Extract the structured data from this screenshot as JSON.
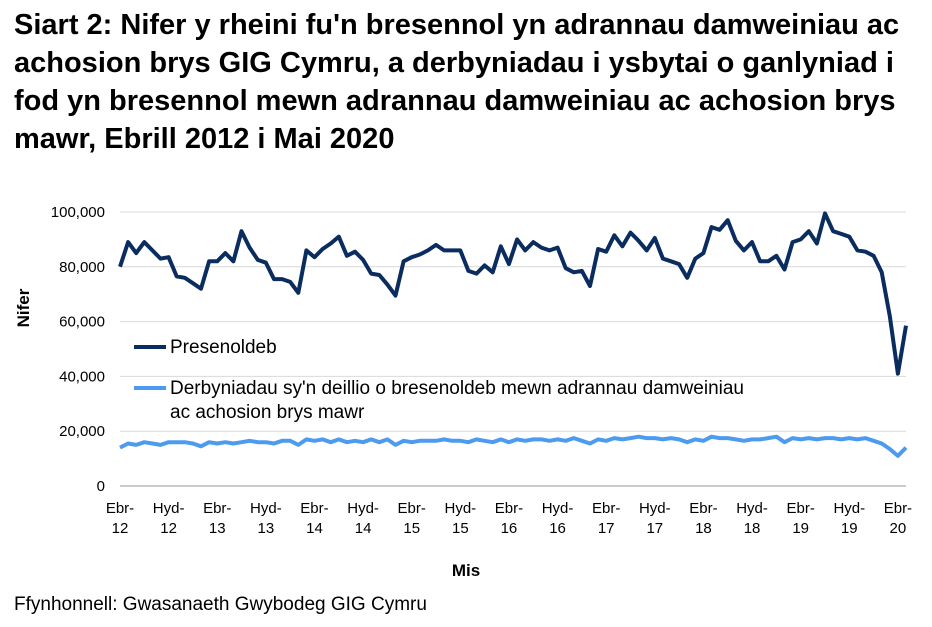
{
  "title": "Siart 2: Nifer y rheini fu'n bresennol yn adrannau damweiniau ac achosion brys GIG Cymru, a derbyniadau i ysbytai o ganlyniad i fod yn bresennol mewn adrannau damweiniau ac achosion brys mawr, Ebrill 2012 i Mai 2020",
  "source": "Ffynhonnell: Gwasanaeth Gwybodeg GIG Cymru",
  "chart_data": {
    "type": "line",
    "xlabel": "Mis",
    "ylabel": "Nifer",
    "ylim": [
      0,
      100000
    ],
    "yticks": [
      "0",
      "20,000",
      "40,000",
      "60,000",
      "80,000",
      "100,000"
    ],
    "yticks_values": [
      0,
      20000,
      40000,
      60000,
      80000,
      100000
    ],
    "grid": "horizontal",
    "legend_position": "middle-left",
    "xtick_labels": [
      {
        "index": 0,
        "line1": "Ebr-",
        "line2": "12"
      },
      {
        "index": 6,
        "line1": "Hyd-",
        "line2": "12"
      },
      {
        "index": 12,
        "line1": "Ebr-",
        "line2": "13"
      },
      {
        "index": 18,
        "line1": "Hyd-",
        "line2": "13"
      },
      {
        "index": 24,
        "line1": "Ebr-",
        "line2": "14"
      },
      {
        "index": 30,
        "line1": "Hyd-",
        "line2": "14"
      },
      {
        "index": 36,
        "line1": "Ebr-",
        "line2": "15"
      },
      {
        "index": 42,
        "line1": "Hyd-",
        "line2": "15"
      },
      {
        "index": 48,
        "line1": "Ebr-",
        "line2": "16"
      },
      {
        "index": 54,
        "line1": "Hyd-",
        "line2": "16"
      },
      {
        "index": 60,
        "line1": "Ebr-",
        "line2": "17"
      },
      {
        "index": 66,
        "line1": "Hyd-",
        "line2": "17"
      },
      {
        "index": 72,
        "line1": "Ebr-",
        "line2": "18"
      },
      {
        "index": 78,
        "line1": "Hyd-",
        "line2": "18"
      },
      {
        "index": 84,
        "line1": "Ebr-",
        "line2": "19"
      },
      {
        "index": 90,
        "line1": "Hyd-",
        "line2": "19"
      },
      {
        "index": 96,
        "line1": "Ebr-",
        "line2": "20"
      }
    ],
    "series": [
      {
        "name": "Presenoldeb",
        "color": "#0b2c5f",
        "values": [
          80000,
          89000,
          85000,
          89000,
          86000,
          83000,
          83500,
          76500,
          76000,
          74000,
          72000,
          82000,
          82000,
          85000,
          82000,
          93000,
          87000,
          82500,
          81500,
          75500,
          75500,
          74500,
          70500,
          86000,
          83500,
          86500,
          88500,
          91000,
          84000,
          85500,
          82500,
          77500,
          77000,
          73500,
          69500,
          82000,
          83500,
          84500,
          86000,
          88000,
          86000,
          86000,
          86000,
          78500,
          77500,
          80500,
          78000,
          87500,
          81000,
          90000,
          86000,
          89000,
          87000,
          86000,
          87000,
          79500,
          78000,
          78500,
          73000,
          86500,
          85500,
          91500,
          87500,
          92500,
          89500,
          86000,
          90500,
          83000,
          82000,
          81000,
          76000,
          83000,
          85000,
          94500,
          93500,
          97000,
          89500,
          86000,
          89000,
          82000,
          82000,
          84000,
          79000,
          89000,
          90000,
          93000,
          88500,
          99500,
          93000,
          92000,
          91000,
          86000,
          85500,
          84000,
          78000,
          62000,
          41000,
          58500
        ]
      },
      {
        "name": "Derbyniadau sy'n deillio o bresenoldeb mewn adrannau damweiniau ac achosion brys mawr",
        "legend_line1": "Derbyniadau sy'n deillio o bresenoldeb mewn adrannau damweiniau",
        "legend_line2": "ac achosion brys mawr",
        "color": "#4d9bef",
        "values": [
          14000,
          15500,
          15000,
          16000,
          15500,
          15000,
          16000,
          16000,
          16000,
          15500,
          14500,
          16000,
          15500,
          16000,
          15500,
          16000,
          16500,
          16000,
          16000,
          15500,
          16500,
          16500,
          15000,
          17000,
          16500,
          17000,
          16000,
          17000,
          16000,
          16500,
          16000,
          17000,
          16000,
          17000,
          15000,
          16500,
          16000,
          16500,
          16500,
          16500,
          17000,
          16500,
          16500,
          16000,
          17000,
          16500,
          16000,
          17000,
          16000,
          17000,
          16500,
          17000,
          17000,
          16500,
          17000,
          16500,
          17500,
          16500,
          15500,
          17000,
          16500,
          17500,
          17000,
          17500,
          18000,
          17500,
          17500,
          17000,
          17500,
          17000,
          16000,
          17000,
          16500,
          18000,
          17500,
          17500,
          17000,
          16500,
          17000,
          17000,
          17500,
          18000,
          16000,
          17500,
          17000,
          17500,
          17000,
          17500,
          17500,
          17000,
          17500,
          17000,
          17500,
          16500,
          15500,
          13500,
          11000,
          14000
        ]
      }
    ]
  }
}
